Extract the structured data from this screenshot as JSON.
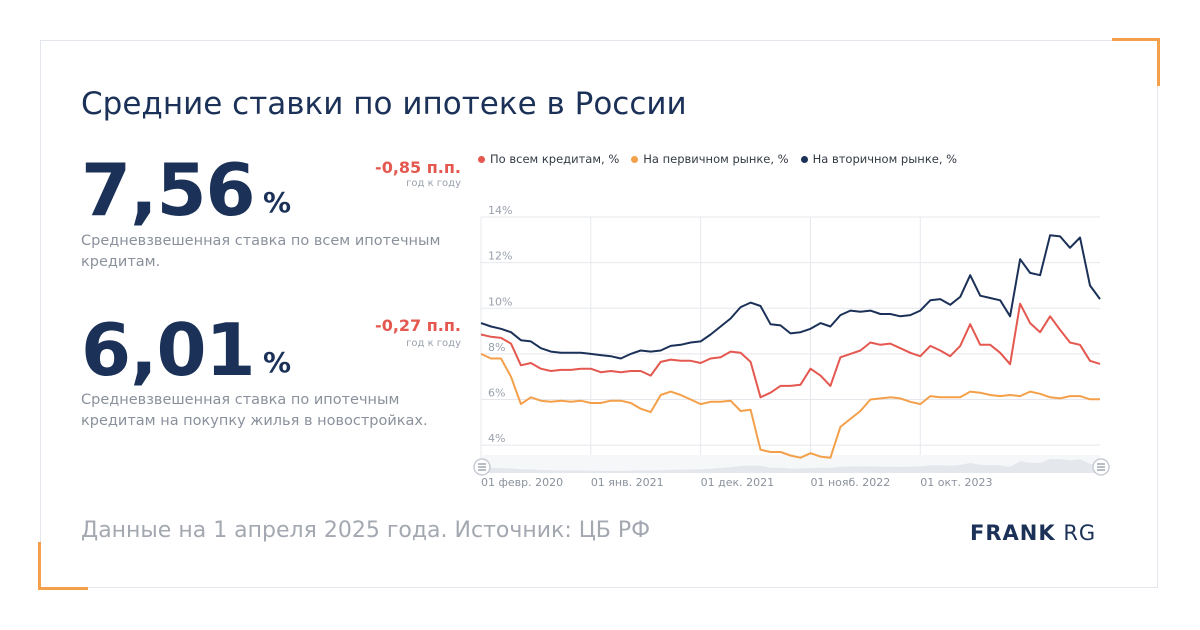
{
  "title": "Средние ставки по ипотеке в России",
  "kpi1": {
    "value": "7,56",
    "unit": "%",
    "change": "-0,85 п.п.",
    "change_sub": "год к году",
    "description": "Средневзвешенная ставка по всем ипотечным кредитам."
  },
  "kpi2": {
    "value": "6,01",
    "unit": "%",
    "change": "-0,27 п.п.",
    "change_sub": "год к году",
    "description": "Средневзвешенная ставка по ипотечным кредитам на покупку жилья в новостройках."
  },
  "footer": {
    "source": "Данные на 1 апреля 2025 года. Источник: ЦБ РФ",
    "logo_bold": "FRANK",
    "logo_light": "RG"
  },
  "colors": {
    "all": "#e4584f",
    "primary": "#f4a04a",
    "secondary": "#1b3158",
    "accent": "#f4a04a"
  },
  "chart_data": {
    "type": "line",
    "title": "",
    "xlabel": "",
    "ylabel": "",
    "ylim": [
      3,
      14
    ],
    "y_ticks": [
      "4%",
      "6%",
      "8%",
      "10%",
      "12%",
      "14%"
    ],
    "x_tick_labels": [
      "01 февр. 2020",
      "01 янв. 2021",
      "01 дек. 2021",
      "01 нояб. 2022",
      "01 окт. 2023"
    ],
    "legend_position": "top",
    "grid": true,
    "series": [
      {
        "name": "По всем кредитам, %",
        "color": "#e4584f",
        "values": [
          8.85,
          8.75,
          8.7,
          8.45,
          7.5,
          7.6,
          7.35,
          7.25,
          7.3,
          7.3,
          7.35,
          7.35,
          7.2,
          7.25,
          7.2,
          7.25,
          7.25,
          7.05,
          7.65,
          7.75,
          7.7,
          7.7,
          7.6,
          7.8,
          7.85,
          8.1,
          8.05,
          7.65,
          6.1,
          6.3,
          6.6,
          6.6,
          6.65,
          7.35,
          7.05,
          6.6,
          7.85,
          8.0,
          8.15,
          8.5,
          8.4,
          8.45,
          8.25,
          8.05,
          7.9,
          8.35,
          8.15,
          7.9,
          8.35,
          9.3,
          8.4,
          8.4,
          8.05,
          7.55,
          10.2,
          9.35,
          8.95,
          9.65,
          9.05,
          8.5,
          8.4,
          7.7,
          7.56
        ]
      },
      {
        "name": "На первичном рынке, %",
        "color": "#f4a04a",
        "values": [
          8.0,
          7.8,
          7.8,
          7.0,
          5.8,
          6.1,
          5.95,
          5.9,
          5.95,
          5.9,
          5.95,
          5.85,
          5.85,
          5.95,
          5.95,
          5.85,
          5.6,
          5.45,
          6.2,
          6.35,
          6.2,
          6.0,
          5.8,
          5.9,
          5.9,
          5.95,
          5.5,
          5.55,
          3.8,
          3.7,
          3.7,
          3.55,
          3.45,
          3.65,
          3.5,
          3.45,
          4.8,
          5.15,
          5.5,
          6.0,
          6.05,
          6.1,
          6.05,
          5.9,
          5.8,
          6.15,
          6.1,
          6.1,
          6.1,
          6.35,
          6.3,
          6.2,
          6.15,
          6.2,
          6.15,
          6.35,
          6.25,
          6.1,
          6.05,
          6.15,
          6.15,
          6.01,
          6.01
        ]
      },
      {
        "name": "На вторичном рынке, %",
        "color": "#1b3158",
        "values": [
          9.35,
          9.2,
          9.1,
          8.95,
          8.6,
          8.55,
          8.25,
          8.1,
          8.05,
          8.05,
          8.05,
          8.0,
          7.95,
          7.9,
          7.8,
          8.0,
          8.15,
          8.1,
          8.15,
          8.35,
          8.4,
          8.5,
          8.55,
          8.85,
          9.2,
          9.55,
          10.05,
          10.25,
          10.1,
          9.3,
          9.25,
          8.9,
          8.95,
          9.1,
          9.35,
          9.2,
          9.7,
          9.9,
          9.85,
          9.9,
          9.75,
          9.75,
          9.65,
          9.7,
          9.9,
          10.35,
          10.4,
          10.15,
          10.5,
          11.45,
          10.55,
          10.45,
          10.35,
          9.65,
          12.15,
          11.55,
          11.45,
          13.2,
          13.15,
          12.65,
          13.1,
          11.0,
          10.4
        ]
      }
    ]
  }
}
